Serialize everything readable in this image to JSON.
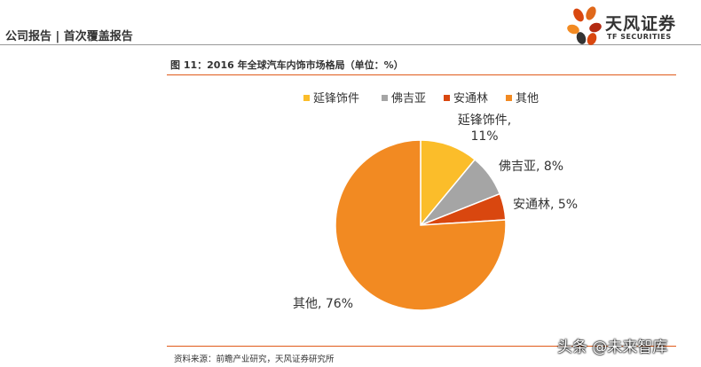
{
  "header": {
    "breadcrumb": "公司报告 | 首次覆盖报告",
    "logo_cn": "天风证券",
    "logo_en": "TF SECURITIES"
  },
  "figure": {
    "title": "图 11：2016 年全球汽车内饰市场格局（单位：%）",
    "source": "资料来源：前瞻产业研究，天风证券研究所"
  },
  "watermark": "头条 @未来智库",
  "chart_data": {
    "type": "pie",
    "title": "",
    "legend_position": "top",
    "slices": [
      {
        "name": "延锋饰件",
        "value": 11,
        "color": "#fbbd2a",
        "label_lines": [
          "延锋饰件,",
          "11%"
        ]
      },
      {
        "name": "佛吉亚",
        "value": 8,
        "color": "#a5a5a5",
        "label_lines": [
          "佛吉亚, 8%"
        ]
      },
      {
        "name": "安通林",
        "value": 5,
        "color": "#d9470f",
        "label_lines": [
          "安通林, 5%"
        ]
      },
      {
        "name": "其他",
        "value": 76,
        "color": "#f28a22",
        "label_lines": [
          "其他, 76%"
        ]
      }
    ]
  }
}
